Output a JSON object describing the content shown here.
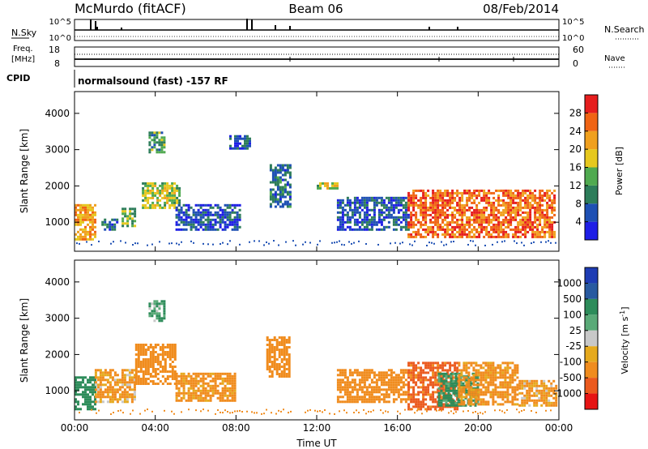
{
  "header": {
    "station": "McMurdo (fitACF)",
    "beam": "Beam 06",
    "date": "08/Feb/2014"
  },
  "strip_labels": {
    "nsky": "N.Sky",
    "nsearch": "N.Search",
    "freq_line1": "Freq.",
    "freq_line2": "[MHz]",
    "nave": "Nave",
    "cpid": "CPID",
    "cpid_text": "normalsound (fast) -157 RF"
  },
  "strip_ticks": {
    "nsky_left": [
      "10^5",
      "10^0"
    ],
    "nsky_right": [
      "10^5",
      "10^0"
    ],
    "freq_left": [
      "18",
      "8"
    ],
    "nave_right": [
      "60",
      "0"
    ]
  },
  "colors": {
    "power_scale": [
      "#1e1ee6",
      "#1e50b4",
      "#2d7d5a",
      "#50aa50",
      "#e6c81e",
      "#f0a01e",
      "#f06414",
      "#e61e1e"
    ],
    "velocity_scale": [
      "#1e3cb4",
      "#285aa0",
      "#2d8c5a",
      "#5aaa78",
      "#c8c8c8",
      "#e6aa1e",
      "#f08c1e",
      "#eb5a1e",
      "#e61414"
    ]
  },
  "chart_data": [
    {
      "type": "heatmap",
      "title": "",
      "xlabel": "",
      "ylabel": "Slant Range [km]",
      "x_ticks": [
        "00:00",
        "04:00",
        "08:00",
        "12:00",
        "16:00",
        "20:00",
        "00:00"
      ],
      "y_ticks": [
        "1000",
        "2000",
        "3000",
        "4000"
      ],
      "ylim": [
        200,
        4600
      ],
      "colorbar": {
        "label": "Power [dB]",
        "ticks": [
          "4",
          "8",
          "12",
          "16",
          "20",
          "24",
          "28"
        ],
        "range": [
          0,
          32
        ]
      },
      "echo_regions": [
        {
          "t_start": "00:00",
          "t_end": "01:00",
          "range_low_km": 500,
          "range_high_km": 1500,
          "power_db": 22
        },
        {
          "t_start": "01:20",
          "t_end": "02:10",
          "range_low_km": 800,
          "range_high_km": 1100,
          "power_db": 8
        },
        {
          "t_start": "02:20",
          "t_end": "03:00",
          "range_low_km": 900,
          "range_high_km": 1400,
          "power_db": 14
        },
        {
          "t_start": "03:40",
          "t_end": "04:30",
          "range_low_km": 2900,
          "range_high_km": 3500,
          "power_db": 12
        },
        {
          "t_start": "03:20",
          "t_end": "05:10",
          "range_low_km": 1400,
          "range_high_km": 2100,
          "power_db": 16
        },
        {
          "t_start": "05:00",
          "t_end": "08:10",
          "range_low_km": 800,
          "range_high_km": 1500,
          "power_db": 6
        },
        {
          "t_start": "07:40",
          "t_end": "08:40",
          "range_low_km": 3000,
          "range_high_km": 3400,
          "power_db": 6
        },
        {
          "t_start": "09:40",
          "t_end": "10:40",
          "range_low_km": 1400,
          "range_high_km": 2600,
          "power_db": 8
        },
        {
          "t_start": "12:00",
          "t_end": "13:00",
          "range_low_km": 1900,
          "range_high_km": 2100,
          "power_db": 16
        },
        {
          "t_start": "13:00",
          "t_end": "16:30",
          "range_low_km": 800,
          "range_high_km": 1700,
          "power_db": 6
        },
        {
          "t_start": "16:30",
          "t_end": "23:50",
          "range_low_km": 600,
          "range_high_km": 1900,
          "power_db": 26
        }
      ]
    },
    {
      "type": "heatmap",
      "title": "",
      "xlabel": "Time UT",
      "ylabel": "Slant Range [km]",
      "x_ticks": [
        "00:00",
        "04:00",
        "08:00",
        "12:00",
        "16:00",
        "20:00",
        "00:00"
      ],
      "y_ticks": [
        "1000",
        "2000",
        "3000",
        "4000"
      ],
      "ylim": [
        200,
        4600
      ],
      "colorbar": {
        "label": "Velocity [m s^-1]",
        "ticks": [
          "1000",
          "500",
          "100",
          "25",
          "-25",
          "-100",
          "-500",
          "-1000"
        ],
        "range": [
          -1200,
          1200
        ]
      },
      "echo_regions": [
        {
          "t_start": "00:00",
          "t_end": "01:00",
          "range_low_km": 500,
          "range_high_km": 1400,
          "velocity_ms": 300
        },
        {
          "t_start": "01:00",
          "t_end": "03:00",
          "range_low_km": 700,
          "range_high_km": 1600,
          "velocity_ms": -150
        },
        {
          "t_start": "03:00",
          "t_end": "05:00",
          "range_low_km": 1200,
          "range_high_km": 2300,
          "velocity_ms": -300
        },
        {
          "t_start": "03:40",
          "t_end": "04:30",
          "range_low_km": 2900,
          "range_high_km": 3500,
          "velocity_ms": 150
        },
        {
          "t_start": "05:00",
          "t_end": "08:00",
          "range_low_km": 700,
          "range_high_km": 1500,
          "velocity_ms": -200
        },
        {
          "t_start": "09:30",
          "t_end": "10:40",
          "range_low_km": 1400,
          "range_high_km": 2500,
          "velocity_ms": -300
        },
        {
          "t_start": "13:00",
          "t_end": "16:30",
          "range_low_km": 700,
          "range_high_km": 1600,
          "velocity_ms": -250
        },
        {
          "t_start": "16:30",
          "t_end": "19:00",
          "range_low_km": 500,
          "range_high_km": 1800,
          "velocity_ms": -600
        },
        {
          "t_start": "18:00",
          "t_end": "20:00",
          "range_low_km": 600,
          "range_high_km": 1500,
          "velocity_ms": 200
        },
        {
          "t_start": "19:00",
          "t_end": "22:00",
          "range_low_km": 600,
          "range_high_km": 1800,
          "velocity_ms": -200
        },
        {
          "t_start": "22:00",
          "t_end": "23:50",
          "range_low_km": 600,
          "range_high_km": 1300,
          "velocity_ms": -150
        }
      ]
    }
  ]
}
